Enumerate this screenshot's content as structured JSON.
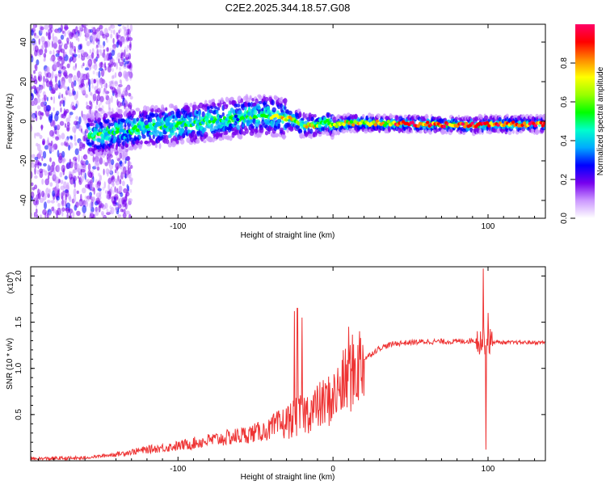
{
  "figure_title": "C2E2.2025.344.18.57.G08",
  "colors": {
    "axis": "#000000",
    "snr_line": "#ee3333"
  },
  "chart_data": [
    {
      "type": "heatmap",
      "name": "spectrogram",
      "title": "C2E2.2025.344.18.57.G08",
      "xlabel": "Height of straight line (km)",
      "ylabel": "Frequency (Hz)",
      "xlim": [
        -195,
        137
      ],
      "ylim": [
        -49,
        49
      ],
      "xticks": [
        -100,
        0,
        100
      ],
      "xtick_labels": [
        "-100",
        "",
        "100"
      ],
      "yticks": [
        -40,
        -20,
        0,
        20,
        40
      ],
      "ytick_labels": [
        "-40",
        "-20",
        "0",
        "20",
        "40"
      ],
      "ridge": {
        "x": [
          -155,
          -140,
          -120,
          -100,
          -80,
          -60,
          -45,
          -33,
          -25,
          -20,
          -10,
          -5,
          0,
          10,
          30,
          60,
          90,
          100,
          137
        ],
        "y": [
          -7,
          -5,
          -3,
          -2,
          0,
          2,
          3,
          2,
          1,
          -2,
          -2,
          0,
          -2,
          -1,
          -1,
          -1.5,
          -2,
          -1.5,
          -1.5
        ]
      },
      "colorbar": {
        "label": "Normalized spectral amplitude",
        "range": [
          0,
          1
        ],
        "ticks": [
          0.0,
          0.2,
          0.4,
          0.6,
          0.8
        ],
        "tick_labels": [
          "0.0",
          "0.2",
          "0.4",
          "0.6",
          "0.8"
        ],
        "colormap": [
          "#ffffff",
          "#cc99ff",
          "#7700ee",
          "#0000ff",
          "#00aaff",
          "#00ffcc",
          "#00ff00",
          "#99ff00",
          "#ffff00",
          "#ff8800",
          "#ff0000",
          "#ff0066"
        ]
      }
    },
    {
      "type": "line",
      "name": "snr",
      "xlabel": "Height of straight line (km)",
      "ylabel": "SNR (10 * v/v)",
      "scale_label": "(x10",
      "scale_exp": "4",
      "xlim": [
        -195,
        137
      ],
      "ylim": [
        0,
        2.1
      ],
      "xticks": [
        -100,
        0,
        100
      ],
      "xtick_labels": [
        "-100",
        "0",
        "100"
      ],
      "yticks": [
        0.5,
        1.0,
        1.5,
        2.0
      ],
      "ytick_labels": [
        "0.5",
        "1.0",
        "1.5",
        "2.0"
      ],
      "trend": {
        "x": [
          -195,
          -160,
          -140,
          -120,
          -100,
          -80,
          -60,
          -40,
          -30,
          -20,
          -10,
          0,
          10,
          20,
          30,
          40,
          60,
          80,
          90,
          95,
          100,
          110,
          137
        ],
        "y": [
          0.02,
          0.03,
          0.07,
          0.12,
          0.16,
          0.22,
          0.27,
          0.34,
          0.42,
          0.5,
          0.58,
          0.68,
          0.9,
          1.1,
          1.22,
          1.27,
          1.29,
          1.29,
          1.3,
          1.3,
          1.29,
          1.28,
          1.28
        ]
      },
      "spikes": [
        {
          "x": -25,
          "y": 1.62
        },
        {
          "x": -23,
          "y": 1.65
        },
        {
          "x": -20,
          "y": 1.55
        },
        {
          "x": 10,
          "y": 1.45
        },
        {
          "x": 97,
          "y": 2.08
        },
        {
          "x": 98.5,
          "y": 0.12
        },
        {
          "x": 100,
          "y": 1.6
        }
      ]
    }
  ]
}
